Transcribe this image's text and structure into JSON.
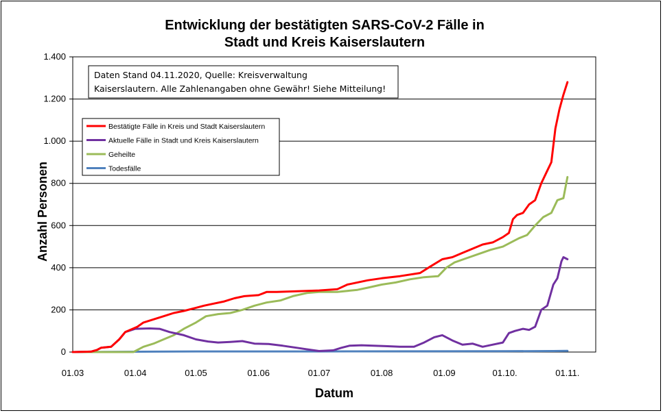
{
  "chart_data": {
    "type": "line",
    "title_lines": [
      "Entwicklung der bestätigten SARS-CoV-2 Fälle in",
      "Stadt und Kreis Kaiserslautern"
    ],
    "xlabel": "Datum",
    "ylabel": "Anzahl Personen",
    "x_ticks": [
      {
        "label": "01.03",
        "date": "2020-03-01"
      },
      {
        "label": "01.04",
        "date": "2020-04-01"
      },
      {
        "label": "01.05",
        "date": "2020-05-01"
      },
      {
        "label": "01.06",
        "date": "2020-06-01"
      },
      {
        "label": "01.07",
        "date": "2020-07-01"
      },
      {
        "label": "01.08",
        "date": "2020-08-01"
      },
      {
        "label": "01.09",
        "date": "2020-09-01"
      },
      {
        "label": "01.10.",
        "date": "2020-10-01"
      },
      {
        "label": "01.11.",
        "date": "2020-11-01"
      }
    ],
    "xlim": [
      "2020-03-01",
      "2020-11-15"
    ],
    "y_ticks": [
      {
        "value": 0,
        "label": "0"
      },
      {
        "value": 200,
        "label": "200"
      },
      {
        "value": 400,
        "label": "400"
      },
      {
        "value": 600,
        "label": "600"
      },
      {
        "value": 800,
        "label": "800"
      },
      {
        "value": 1000,
        "label": "1.000"
      },
      {
        "value": 1200,
        "label": "1.200"
      },
      {
        "value": 1400,
        "label": "1.400"
      }
    ],
    "ylim": [
      0,
      1400
    ],
    "grid": "horizontal",
    "legend_position": "upper-left",
    "annotation_lines": [
      "Daten Stand 04.11.2020, Quelle: Kreisverwaltung",
      "Kaiserslautern. Alle Zahlenangaben ohne Gewähr! Siehe Mitteilung!"
    ],
    "series": [
      {
        "name": "Bestätigte Fälle in Kreis und Stadt Kaiserslautern",
        "color": "#ff0000",
        "points": [
          [
            "2020-03-01",
            0
          ],
          [
            "2020-03-10",
            2
          ],
          [
            "2020-03-13",
            10
          ],
          [
            "2020-03-15",
            20
          ],
          [
            "2020-03-20",
            25
          ],
          [
            "2020-03-24",
            60
          ],
          [
            "2020-03-27",
            95
          ],
          [
            "2020-04-02",
            120
          ],
          [
            "2020-04-05",
            140
          ],
          [
            "2020-04-10",
            155
          ],
          [
            "2020-04-15",
            170
          ],
          [
            "2020-04-20",
            185
          ],
          [
            "2020-04-25",
            195
          ],
          [
            "2020-05-01",
            210
          ],
          [
            "2020-05-05",
            220
          ],
          [
            "2020-05-10",
            230
          ],
          [
            "2020-05-15",
            240
          ],
          [
            "2020-05-20",
            255
          ],
          [
            "2020-05-25",
            265
          ],
          [
            "2020-06-01",
            270
          ],
          [
            "2020-06-05",
            285
          ],
          [
            "2020-06-10",
            285
          ],
          [
            "2020-06-20",
            288
          ],
          [
            "2020-07-01",
            292
          ],
          [
            "2020-07-10",
            298
          ],
          [
            "2020-07-15",
            320
          ],
          [
            "2020-07-25",
            340
          ],
          [
            "2020-08-01",
            350
          ],
          [
            "2020-08-10",
            360
          ],
          [
            "2020-08-20",
            375
          ],
          [
            "2020-08-25",
            405
          ],
          [
            "2020-08-31",
            440
          ],
          [
            "2020-09-05",
            450
          ],
          [
            "2020-09-10",
            470
          ],
          [
            "2020-09-15",
            490
          ],
          [
            "2020-09-20",
            510
          ],
          [
            "2020-09-25",
            520
          ],
          [
            "2020-09-30",
            545
          ],
          [
            "2020-10-03",
            565
          ],
          [
            "2020-10-05",
            630
          ],
          [
            "2020-10-07",
            650
          ],
          [
            "2020-10-10",
            660
          ],
          [
            "2020-10-13",
            700
          ],
          [
            "2020-10-16",
            720
          ],
          [
            "2020-10-19",
            800
          ],
          [
            "2020-10-22",
            860
          ],
          [
            "2020-10-24",
            900
          ],
          [
            "2020-10-26",
            1060
          ],
          [
            "2020-10-28",
            1150
          ],
          [
            "2020-10-30",
            1220
          ],
          [
            "2020-11-01",
            1280
          ]
        ]
      },
      {
        "name": "Aktuelle Fälle in Stadt und Kreis Kaiserslautern",
        "color": "#7030a0",
        "points": [
          [
            "2020-03-01",
            0
          ],
          [
            "2020-03-10",
            2
          ],
          [
            "2020-03-13",
            10
          ],
          [
            "2020-03-15",
            20
          ],
          [
            "2020-03-20",
            25
          ],
          [
            "2020-03-24",
            60
          ],
          [
            "2020-03-27",
            95
          ],
          [
            "2020-04-01",
            110
          ],
          [
            "2020-04-08",
            112
          ],
          [
            "2020-04-13",
            110
          ],
          [
            "2020-04-18",
            95
          ],
          [
            "2020-04-25",
            80
          ],
          [
            "2020-05-01",
            60
          ],
          [
            "2020-05-07",
            50
          ],
          [
            "2020-05-12",
            45
          ],
          [
            "2020-05-18",
            48
          ],
          [
            "2020-05-24",
            52
          ],
          [
            "2020-05-30",
            40
          ],
          [
            "2020-06-06",
            38
          ],
          [
            "2020-06-13",
            30
          ],
          [
            "2020-06-20",
            20
          ],
          [
            "2020-06-27",
            10
          ],
          [
            "2020-07-01",
            5
          ],
          [
            "2020-07-08",
            8
          ],
          [
            "2020-07-12",
            20
          ],
          [
            "2020-07-16",
            30
          ],
          [
            "2020-07-22",
            32
          ],
          [
            "2020-07-28",
            30
          ],
          [
            "2020-08-03",
            28
          ],
          [
            "2020-08-10",
            25
          ],
          [
            "2020-08-17",
            25
          ],
          [
            "2020-08-22",
            45
          ],
          [
            "2020-08-27",
            70
          ],
          [
            "2020-08-31",
            80
          ],
          [
            "2020-09-05",
            55
          ],
          [
            "2020-09-10",
            35
          ],
          [
            "2020-09-15",
            40
          ],
          [
            "2020-09-20",
            25
          ],
          [
            "2020-09-25",
            35
          ],
          [
            "2020-09-30",
            45
          ],
          [
            "2020-10-03",
            90
          ],
          [
            "2020-10-06",
            100
          ],
          [
            "2020-10-10",
            110
          ],
          [
            "2020-10-13",
            105
          ],
          [
            "2020-10-16",
            120
          ],
          [
            "2020-10-19",
            200
          ],
          [
            "2020-10-22",
            220
          ],
          [
            "2020-10-25",
            320
          ],
          [
            "2020-10-27",
            350
          ],
          [
            "2020-10-29",
            430
          ],
          [
            "2020-10-30",
            450
          ],
          [
            "2020-11-01",
            440
          ]
        ]
      },
      {
        "name": "Geheilte",
        "color": "#9bbb59",
        "points": [
          [
            "2020-03-01",
            0
          ],
          [
            "2020-03-25",
            0
          ],
          [
            "2020-03-31",
            0
          ],
          [
            "2020-04-05",
            25
          ],
          [
            "2020-04-10",
            40
          ],
          [
            "2020-04-15",
            60
          ],
          [
            "2020-04-20",
            80
          ],
          [
            "2020-04-25",
            110
          ],
          [
            "2020-05-01",
            140
          ],
          [
            "2020-05-06",
            170
          ],
          [
            "2020-05-12",
            180
          ],
          [
            "2020-05-18",
            185
          ],
          [
            "2020-05-24",
            200
          ],
          [
            "2020-05-30",
            220
          ],
          [
            "2020-06-05",
            235
          ],
          [
            "2020-06-12",
            245
          ],
          [
            "2020-06-18",
            265
          ],
          [
            "2020-06-25",
            280
          ],
          [
            "2020-07-01",
            285
          ],
          [
            "2020-07-10",
            285
          ],
          [
            "2020-07-20",
            295
          ],
          [
            "2020-07-25",
            305
          ],
          [
            "2020-08-01",
            320
          ],
          [
            "2020-08-08",
            330
          ],
          [
            "2020-08-15",
            345
          ],
          [
            "2020-08-22",
            355
          ],
          [
            "2020-08-29",
            360
          ],
          [
            "2020-09-02",
            400
          ],
          [
            "2020-09-06",
            425
          ],
          [
            "2020-09-12",
            445
          ],
          [
            "2020-09-18",
            465
          ],
          [
            "2020-09-24",
            485
          ],
          [
            "2020-09-30",
            500
          ],
          [
            "2020-10-04",
            520
          ],
          [
            "2020-10-08",
            540
          ],
          [
            "2020-10-12",
            555
          ],
          [
            "2020-10-16",
            600
          ],
          [
            "2020-10-20",
            640
          ],
          [
            "2020-10-24",
            660
          ],
          [
            "2020-10-27",
            720
          ],
          [
            "2020-10-30",
            730
          ],
          [
            "2020-11-01",
            830
          ]
        ]
      },
      {
        "name": "Todesfälle",
        "color": "#4f81bd",
        "points": [
          [
            "2020-03-01",
            0
          ],
          [
            "2020-04-10",
            2
          ],
          [
            "2020-05-01",
            3
          ],
          [
            "2020-07-01",
            3
          ],
          [
            "2020-10-01",
            4
          ],
          [
            "2020-10-25",
            5
          ],
          [
            "2020-11-01",
            6
          ]
        ]
      }
    ]
  }
}
